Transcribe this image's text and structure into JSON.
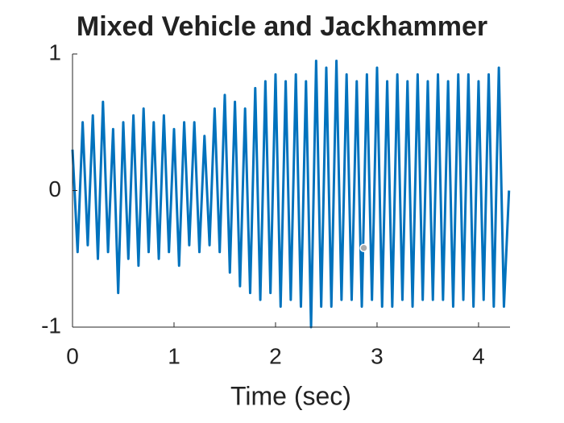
{
  "chart_data": {
    "type": "line",
    "title": "Mixed Vehicle and Jackhammer",
    "x_label": "Time (sec)",
    "x": [
      0,
      0.05,
      0.1,
      0.15,
      0.2,
      0.25,
      0.3,
      0.35,
      0.4,
      0.45,
      0.5,
      0.55,
      0.6,
      0.65,
      0.7,
      0.75,
      0.8,
      0.85,
      0.9,
      0.95,
      1.0,
      1.05,
      1.1,
      1.15,
      1.2,
      1.25,
      1.3,
      1.35,
      1.4,
      1.45,
      1.5,
      1.55,
      1.6,
      1.65,
      1.7,
      1.75,
      1.8,
      1.85,
      1.9,
      1.95,
      2.0,
      2.05,
      2.1,
      2.15,
      2.2,
      2.25,
      2.3,
      2.35,
      2.4,
      2.45,
      2.5,
      2.55,
      2.6,
      2.65,
      2.7,
      2.75,
      2.8,
      2.85,
      2.9,
      2.95,
      3.0,
      3.05,
      3.1,
      3.15,
      3.2,
      3.25,
      3.3,
      3.35,
      3.4,
      3.45,
      3.5,
      3.55,
      3.6,
      3.65,
      3.7,
      3.75,
      3.8,
      3.85,
      3.9,
      3.95,
      4.0,
      4.05,
      4.1,
      4.15,
      4.2,
      4.25,
      4.3
    ],
    "series": [
      {
        "color": "#0072bd",
        "values": [
          0.3,
          -0.45,
          0.5,
          -0.4,
          0.55,
          -0.5,
          0.65,
          -0.45,
          0.45,
          -0.75,
          0.5,
          -0.5,
          0.55,
          -0.55,
          0.6,
          -0.45,
          0.5,
          -0.5,
          0.55,
          -0.45,
          0.45,
          -0.55,
          0.5,
          -0.4,
          0.5,
          -0.45,
          0.4,
          -0.4,
          0.6,
          -0.45,
          0.7,
          -0.6,
          0.65,
          -0.7,
          0.6,
          -0.75,
          0.75,
          -0.8,
          0.8,
          -0.75,
          0.85,
          -0.85,
          0.8,
          -0.8,
          0.85,
          -0.85,
          0.8,
          -1.0,
          0.95,
          -0.85,
          0.9,
          -0.85,
          0.95,
          -0.8,
          0.85,
          -0.8,
          0.8,
          -0.85,
          0.85,
          -0.8,
          0.9,
          -0.85,
          0.8,
          -0.85,
          0.85,
          -0.8,
          0.8,
          -0.85,
          0.85,
          -0.8,
          0.8,
          -0.8,
          0.85,
          -0.8,
          0.8,
          -0.85,
          0.85,
          -0.8,
          0.85,
          -0.85,
          0.8,
          -0.8,
          0.85,
          -0.85,
          0.9,
          -0.85,
          0.0
        ]
      }
    ],
    "marker": {
      "x": 2.87,
      "y": -0.42,
      "color": "#aaaaaa"
    },
    "xlim": [
      0,
      4.31
    ],
    "ylim": [
      -1,
      1
    ],
    "xticks": [
      0,
      1,
      2,
      3,
      4
    ],
    "yticks": [
      -1,
      0,
      1
    ]
  }
}
